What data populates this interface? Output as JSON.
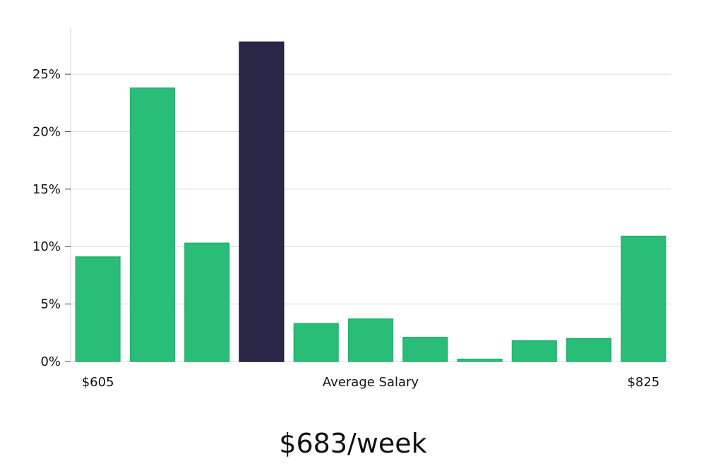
{
  "chart_data": {
    "type": "bar",
    "categories": [
      "$605",
      "",
      "",
      "",
      "",
      "",
      "",
      "",
      "",
      "",
      "$825"
    ],
    "values": [
      9.1,
      23.8,
      10.3,
      27.8,
      3.3,
      3.7,
      2.1,
      0.2,
      1.8,
      2.0,
      10.9
    ],
    "highlight_index": 3,
    "ylim": [
      0,
      29
    ],
    "yticks": [
      0,
      5,
      10,
      15,
      20,
      25
    ],
    "ytick_labels": [
      "0%",
      "5%",
      "10%",
      "15%",
      "20%",
      "25%"
    ],
    "xlabel_left": "$605",
    "xlabel_center": "Average Salary",
    "xlabel_right": "$825",
    "grid": true,
    "colors": {
      "bar": "#2abd77",
      "highlight": "#2a2646",
      "grid": "#d9d9d9",
      "axis": "#cccccc"
    }
  },
  "summary": {
    "value_label": "$683/week"
  }
}
